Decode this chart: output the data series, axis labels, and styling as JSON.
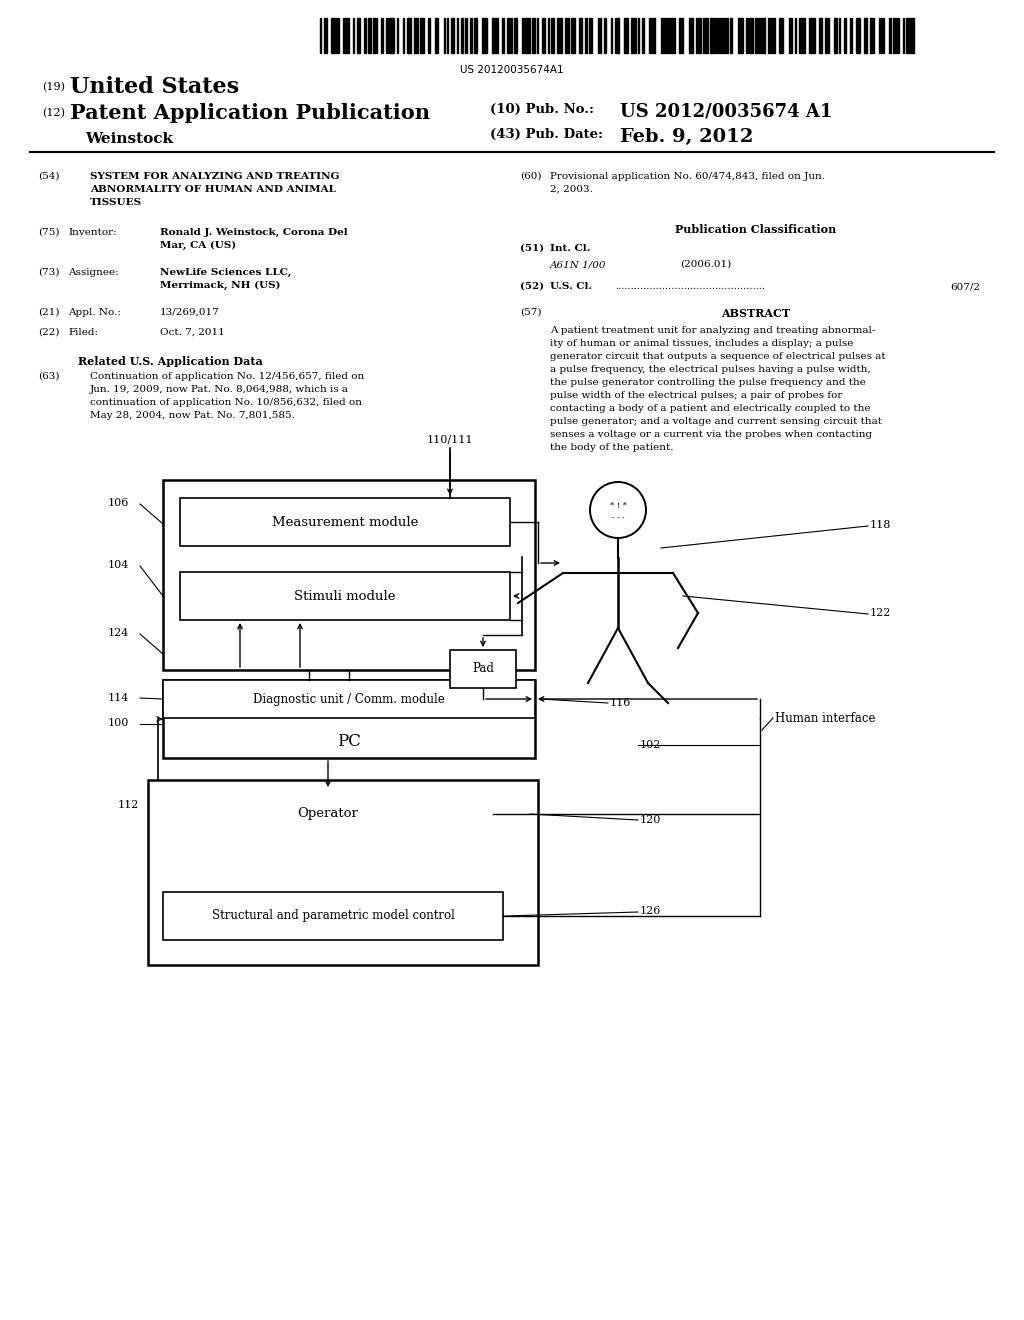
{
  "background_color": "#ffffff",
  "barcode_text": "US 20120035674A1",
  "header": {
    "country_label": "(19)",
    "country_name": "United States",
    "type_label": "(12)",
    "type_name": "Patent Application Publication",
    "inventor_name": "Weinstock",
    "pub_no_label": "(10) Pub. No.:",
    "pub_no_value": "US 2012/0035674 A1",
    "date_label": "(43) Pub. Date:",
    "date_value": "Feb. 9, 2012"
  },
  "fields": {
    "title_num": "(54)",
    "title_line1": "SYSTEM FOR ANALYZING AND TREATING",
    "title_line2": "ABNORMALITY OF HUMAN AND ANIMAL",
    "title_line3": "TISSUES",
    "inventor_num": "(75)",
    "inventor_label": "Inventor:",
    "inventor_val1": "Ronald J. Weinstock, Corona Del",
    "inventor_val2": "Mar, CA (US)",
    "assignee_num": "(73)",
    "assignee_label": "Assignee:",
    "assignee_val1": "NewLife Sciences LLC,",
    "assignee_val2": "Merrimack, NH (US)",
    "appl_num": "(21)",
    "appl_label": "Appl. No.:",
    "appl_val": "13/269,017",
    "filed_num": "(22)",
    "filed_label": "Filed:",
    "filed_val": "Oct. 7, 2011",
    "related_title": "Related U.S. Application Data",
    "related_num": "(63)",
    "related_line1": "Continuation of application No. 12/456,657, filed on",
    "related_line2": "Jun. 19, 2009, now Pat. No. 8,064,988, which is a",
    "related_line3": "continuation of application No. 10/856,632, filed on",
    "related_line4": "May 28, 2004, now Pat. No. 7,801,585.",
    "prov_num": "(60)",
    "prov_line1": "Provisional application No. 60/474,843, filed on Jun.",
    "prov_line2": "2, 2003.",
    "pub_class_title": "Publication Classification",
    "int_cl_num": "(51)",
    "int_cl_label": "Int. Cl.",
    "int_cl_val": "A61N 1/00",
    "int_cl_year": "(2006.01)",
    "us_cl_num": "(52)",
    "us_cl_label": "U.S. Cl.",
    "us_cl_val": "607/2",
    "abstract_num": "(57)",
    "abstract_title": "ABSTRACT",
    "abstract_lines": [
      "A patient treatment unit for analyzing and treating abnormal-",
      "ity of human or animal tissues, includes a display; a pulse",
      "generator circuit that outputs a sequence of electrical pulses at",
      "a pulse frequency, the electrical pulses having a pulse width,",
      "the pulse generator controlling the pulse frequency and the",
      "pulse width of the electrical pulses; a pair of probes for",
      "contacting a body of a patient and electrically coupled to the",
      "pulse generator; and a voltage and current sensing circuit that",
      "senses a voltage or a current via the probes when contacting",
      "the body of the patient."
    ]
  },
  "diagram": {
    "label_106": "106",
    "label_104": "104",
    "label_124": "124",
    "label_114": "114",
    "label_100": "100",
    "label_112": "112",
    "label_110_111": "110/111",
    "label_118": "118",
    "label_122": "122",
    "label_116": "116",
    "label_102": "102",
    "label_120": "120",
    "label_126": "126",
    "box_measurement": "Measurement module",
    "box_stimuli": "Stimuli module",
    "box_diagnostic": "Diagnostic unit / Comm. module",
    "box_pc": "PC",
    "box_operator": "Operator",
    "box_structural": "Structural and parametric model control",
    "box_pad": "Pad",
    "human_interface": "Human interface"
  }
}
